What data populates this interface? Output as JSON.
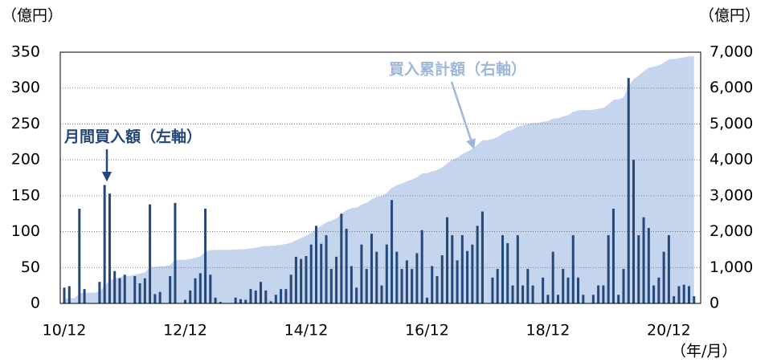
{
  "chart_data": {
    "type": "bar_area",
    "y_unit_left": "（億円）",
    "y_unit_right": "（億円）",
    "x_unit": "（年/月）",
    "categories": [
      "10/12",
      null,
      null,
      null,
      null,
      null,
      null,
      null,
      null,
      null,
      null,
      null,
      null,
      null,
      null,
      null,
      null,
      null,
      null,
      null,
      null,
      null,
      null,
      null,
      "12/12",
      null,
      null,
      null,
      null,
      null,
      null,
      null,
      null,
      null,
      null,
      null,
      null,
      null,
      null,
      null,
      null,
      null,
      null,
      null,
      null,
      null,
      null,
      null,
      "14/12",
      null,
      null,
      null,
      null,
      null,
      null,
      null,
      null,
      null,
      null,
      null,
      null,
      null,
      null,
      null,
      null,
      null,
      null,
      null,
      null,
      null,
      null,
      null,
      "16/12",
      null,
      null,
      null,
      null,
      null,
      null,
      null,
      null,
      null,
      null,
      null,
      null,
      null,
      null,
      null,
      null,
      null,
      null,
      null,
      null,
      null,
      null,
      null,
      "18/12",
      null,
      null,
      null,
      null,
      null,
      null,
      null,
      null,
      null,
      null,
      null,
      null,
      null,
      null,
      null,
      null,
      null,
      null,
      null,
      null,
      null,
      null,
      null,
      "20/12",
      null,
      null,
      null,
      null,
      null
    ],
    "series": [
      {
        "name": "月間買入額（左軸）",
        "color": "#24487a",
        "axis": "y",
        "values": [
          22,
          24,
          0,
          132,
          20,
          0,
          0,
          30,
          165,
          153,
          45,
          35,
          40,
          0,
          38,
          28,
          35,
          138,
          13,
          16,
          0,
          38,
          140,
          0,
          5,
          18,
          35,
          42,
          132,
          40,
          8,
          2,
          0,
          0,
          8,
          6,
          5,
          20,
          18,
          30,
          18,
          3,
          12,
          20,
          20,
          40,
          65,
          62,
          66,
          82,
          108,
          83,
          95,
          48,
          65,
          125,
          104,
          52,
          22,
          82,
          48,
          97,
          72,
          25,
          82,
          144,
          72,
          48,
          60,
          48,
          70,
          102,
          8,
          52,
          38,
          67,
          120,
          95,
          60,
          95,
          73,
          82,
          108,
          128,
          0,
          36,
          48,
          95,
          84,
          25,
          95,
          25,
          48,
          25,
          0,
          36,
          12,
          72,
          12,
          48,
          36,
          95,
          36,
          12,
          0,
          12,
          25,
          25,
          95,
          132,
          12,
          48,
          314,
          200,
          95,
          120,
          105,
          25,
          36,
          72,
          95,
          10,
          24,
          26,
          24,
          10
        ]
      },
      {
        "name": "買入累計額（右軸）",
        "color": "#c5d5ee",
        "axis": "y2",
        "values": [
          122,
          146,
          146,
          278,
          298,
          298,
          298,
          328,
          493,
          646,
          691,
          726,
          766,
          766,
          804,
          832,
          867,
          1005,
          1018,
          1034,
          1034,
          1072,
          1212,
          1212,
          1217,
          1235,
          1270,
          1312,
          1444,
          1484,
          1492,
          1494,
          1494,
          1494,
          1502,
          1508,
          1513,
          1533,
          1551,
          1581,
          1599,
          1602,
          1614,
          1634,
          1654,
          1694,
          1759,
          1821,
          1887,
          1969,
          2077,
          2160,
          2255,
          2303,
          2368,
          2493,
          2597,
          2649,
          2671,
          2753,
          2801,
          2898,
          2970,
          2995,
          3077,
          3221,
          3293,
          3341,
          3401,
          3449,
          3519,
          3621,
          3629,
          3681,
          3719,
          3786,
          3906,
          4001,
          4061,
          4156,
          4229,
          4311,
          4419,
          4547,
          4547,
          4583,
          4631,
          4726,
          4810,
          4835,
          4930,
          4955,
          5003,
          5028,
          5028,
          5064,
          5076,
          5148,
          5160,
          5208,
          5244,
          5339,
          5375,
          5387,
          5387,
          5399,
          5424,
          5449,
          5544,
          5676,
          5688,
          5736,
          6050,
          6250,
          6345,
          6465,
          6570,
          6595,
          6631,
          6703,
          6798,
          6808,
          6832,
          6858,
          6882,
          6892
        ]
      }
    ],
    "ylim": [
      0,
      350
    ],
    "yticks": [
      0,
      50,
      100,
      150,
      200,
      250,
      300,
      350
    ],
    "y2lim": [
      0,
      7000
    ],
    "y2ticks": [
      0,
      {
        "value": 1000,
        "label": "1,000"
      },
      {
        "value": 2000,
        "label": "2,000"
      },
      {
        "value": 3000,
        "label": "3,000"
      },
      {
        "value": 4000,
        "label": "4,000"
      },
      {
        "value": 5000,
        "label": "5,000"
      },
      {
        "value": 6000,
        "label": "6,000"
      },
      {
        "value": 7000,
        "label": "7,000"
      }
    ],
    "grid": true
  }
}
